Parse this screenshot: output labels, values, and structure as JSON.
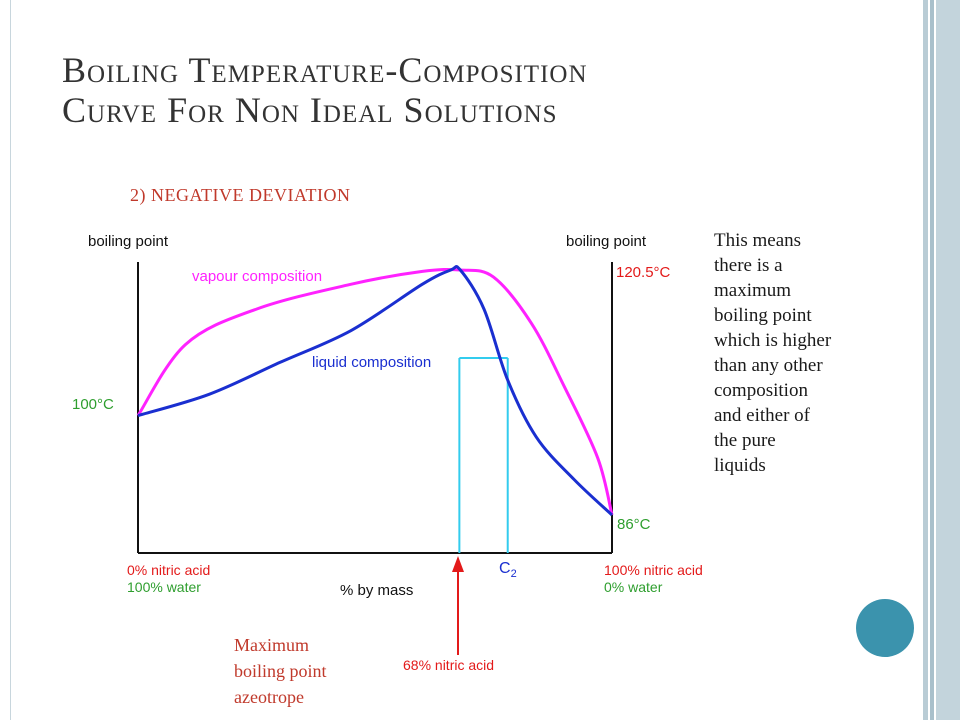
{
  "title": {
    "line1": "Boiling Temperature-Composition",
    "line2": "Curve For Non Ideal Solutions"
  },
  "subtitle": "2) NEGATIVE DEVIATION",
  "side_note": [
    "This means",
    "there is a",
    "maximum",
    "boiling point",
    "which is higher",
    "than any other",
    "composition",
    "and either of",
    "the pure",
    "liquids"
  ],
  "azeotrope_note": [
    "Maximum",
    "boiling point",
    "azeotrope"
  ],
  "colors": {
    "vapour": "#ff22ff",
    "liquid": "#1a2fd0",
    "tie_line": "#33ccee",
    "green_label": "#2e9e2e",
    "red_label": "#e31a1a",
    "axis": "#111111",
    "note_red": "#c0392b",
    "accent": "#3b93ad"
  },
  "chart_data": {
    "type": "line",
    "left_axis_label": "boiling point",
    "right_axis_label": "boiling point",
    "x_axis_label": "% by mass",
    "x_range": [
      0,
      100
    ],
    "left_start_label": "100°C",
    "right_end_label": "86°C",
    "max_label": "120.5°C",
    "left_bottom_labels": [
      "0% nitric acid",
      "100% water"
    ],
    "right_bottom_labels": [
      "100% nitric acid",
      "0% water"
    ],
    "azeotrope_label": "68% nitric acid",
    "azeotrope_x": 68,
    "c2_label": "C",
    "c2_subscript": "2",
    "c2_x": 78,
    "series": [
      {
        "name": "vapour composition",
        "points": [
          [
            0,
            100
          ],
          [
            10,
            110
          ],
          [
            25,
            115
          ],
          [
            45,
            118.5
          ],
          [
            60,
            120.3
          ],
          [
            68,
            120.5
          ],
          [
            75,
            119.5
          ],
          [
            83,
            113
          ],
          [
            90,
            104
          ],
          [
            97,
            94
          ],
          [
            100,
            86
          ]
        ]
      },
      {
        "name": "liquid composition",
        "points": [
          [
            0,
            100
          ],
          [
            15,
            103
          ],
          [
            30,
            107.5
          ],
          [
            45,
            112
          ],
          [
            60,
            118.5
          ],
          [
            66,
            120.5
          ],
          [
            68,
            120.5
          ],
          [
            73,
            115
          ],
          [
            78,
            105
          ],
          [
            84,
            97
          ],
          [
            92,
            91
          ],
          [
            100,
            86
          ]
        ]
      }
    ]
  }
}
